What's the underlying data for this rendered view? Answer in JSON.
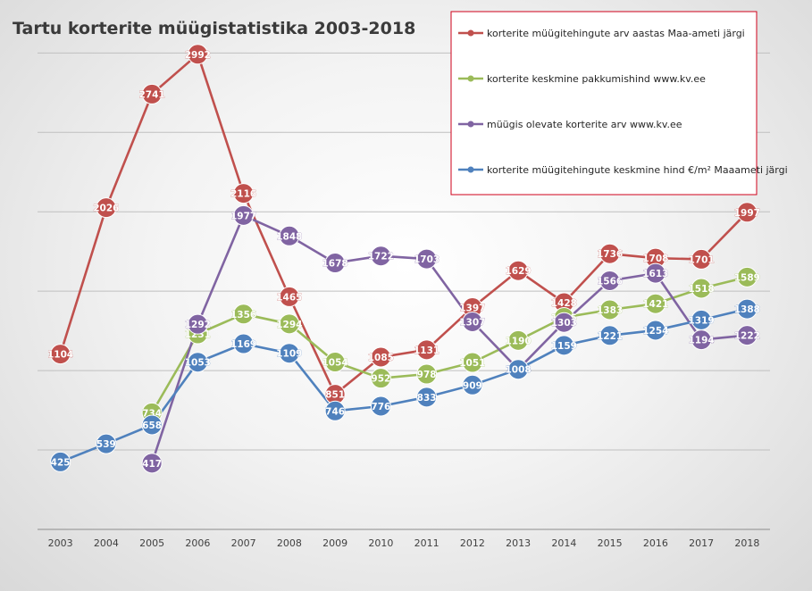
{
  "chart_data": {
    "type": "line",
    "title": "Tartu korterite müügistatistika 2003-2018",
    "xlabel": "",
    "ylabel": "",
    "categories": [
      "2003",
      "2004",
      "2005",
      "2006",
      "2007",
      "2008",
      "2009",
      "2010",
      "2011",
      "2012",
      "2013",
      "2014",
      "2015",
      "2016",
      "2017",
      "2018"
    ],
    "ylim": [
      0,
      3300
    ],
    "grid": true,
    "legend_position": "top-right",
    "series": [
      {
        "name": "korterite müügitehingute arv aastas Maa-ameti järgi",
        "color": "#C0504D",
        "values": [
          1104,
          2026,
          2741,
          2992,
          2116,
          1465,
          851,
          1085,
          1131,
          1397,
          1629,
          1428,
          1736,
          1708,
          1701,
          1997
        ]
      },
      {
        "name": "korterite keskmine pakkumishind www.kv.ee",
        "color": "#9BBB59",
        "values": [
          null,
          null,
          734,
          1231,
          1356,
          1294,
          1054,
          952,
          978,
          1051,
          1190,
          1335,
          1383,
          1421,
          1518,
          1589
        ]
      },
      {
        "name": "müügis olevate korterite arv www.kv.ee",
        "color": "#8064A2",
        "values": [
          null,
          null,
          417,
          1292,
          1977,
          1848,
          1678,
          1722,
          1703,
          1307,
          1008,
          1303,
          1566,
          1613,
          1194,
          1222
        ]
      },
      {
        "name": "korterite müügitehingute keskmine hind €/m² Maaameti järgi",
        "color": "#4F81BD",
        "values": [
          425,
          539,
          658,
          1053,
          1169,
          1109,
          746,
          776,
          833,
          909,
          1008,
          1159,
          1221,
          1254,
          1319,
          1388
        ]
      }
    ]
  }
}
